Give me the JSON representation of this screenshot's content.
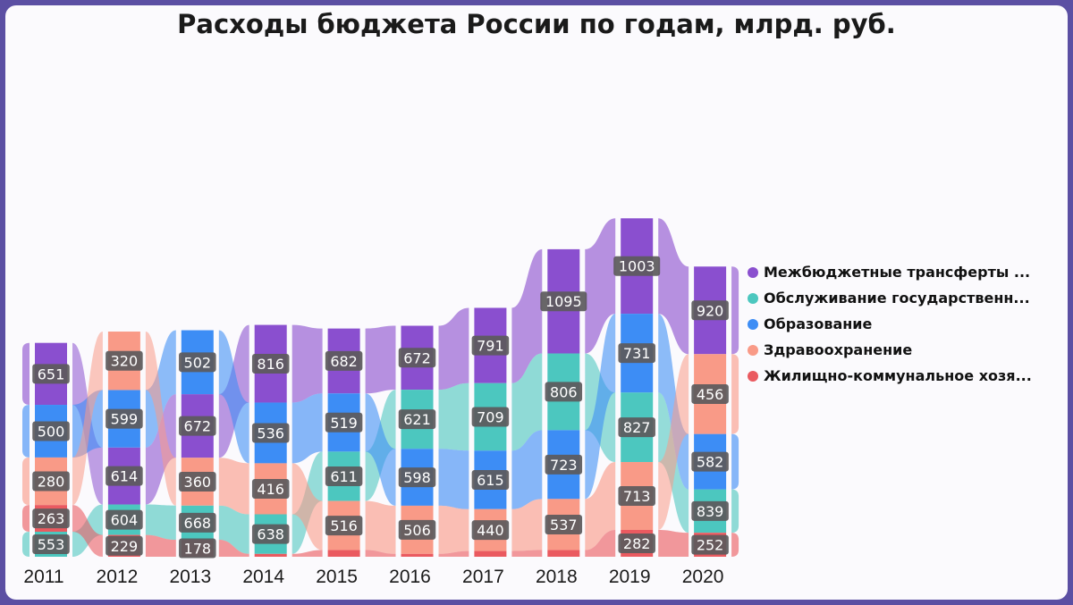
{
  "chart_data": {
    "type": "bar",
    "title": "Расходы бюджета России по годам, млрд. руб.",
    "categories": [
      "2011",
      "2012",
      "2013",
      "2014",
      "2015",
      "2016",
      "2017",
      "2018",
      "2019",
      "2020"
    ],
    "series": [
      {
        "name": "Межбюджетные трансферты ...",
        "color": "#8a4fcf",
        "values": [
          651,
          599,
          668,
          816,
          682,
          672,
          791,
          1095,
          1003,
          920
        ]
      },
      {
        "name": "Обслуживание государственн...",
        "color": "#4cc7bf",
        "values": [
          263,
          320,
          360,
          416,
          519,
          621,
          709,
          806,
          731,
          456
        ]
      },
      {
        "name": "Образование",
        "color": "#3d8df5",
        "values": [
          553,
          604,
          672,
          638,
          611,
          598,
          615,
          723,
          827,
          582
        ]
      },
      {
        "name": "Здравоохранение",
        "color": "#f99a87",
        "values": [
          500,
          614,
          502,
          536,
          516,
          506,
          440,
          537,
          713,
          839
        ]
      },
      {
        "name": "Жилищно-коммунальное хозя...",
        "color": "#ea5a60",
        "values": [
          280,
          229,
          178,
          30,
          70,
          30,
          60,
          70,
          282,
          252
        ]
      }
    ],
    "data_labels": [
      [
        "651",
        "553",
        "500",
        "280",
        "263"
      ],
      [
        "614",
        "604",
        "599",
        "320",
        "229"
      ],
      [
        "672",
        "668",
        "502",
        "360",
        "178"
      ],
      [
        "816",
        "638",
        "536",
        "416",
        ""
      ],
      [
        "682",
        "611",
        "519",
        "516",
        ""
      ],
      [
        "672",
        "621",
        "598",
        "506",
        ""
      ],
      [
        "791",
        "709",
        "615",
        "440",
        ""
      ],
      [
        "1095",
        "806",
        "723",
        "537",
        ""
      ],
      [
        "1003",
        "827",
        "731",
        "713",
        "282"
      ],
      [
        "920",
        "839",
        "582",
        "456",
        "252"
      ]
    ],
    "stacking": "ranked (largest value on top)",
    "legend_position": "right",
    "grid": false
  }
}
